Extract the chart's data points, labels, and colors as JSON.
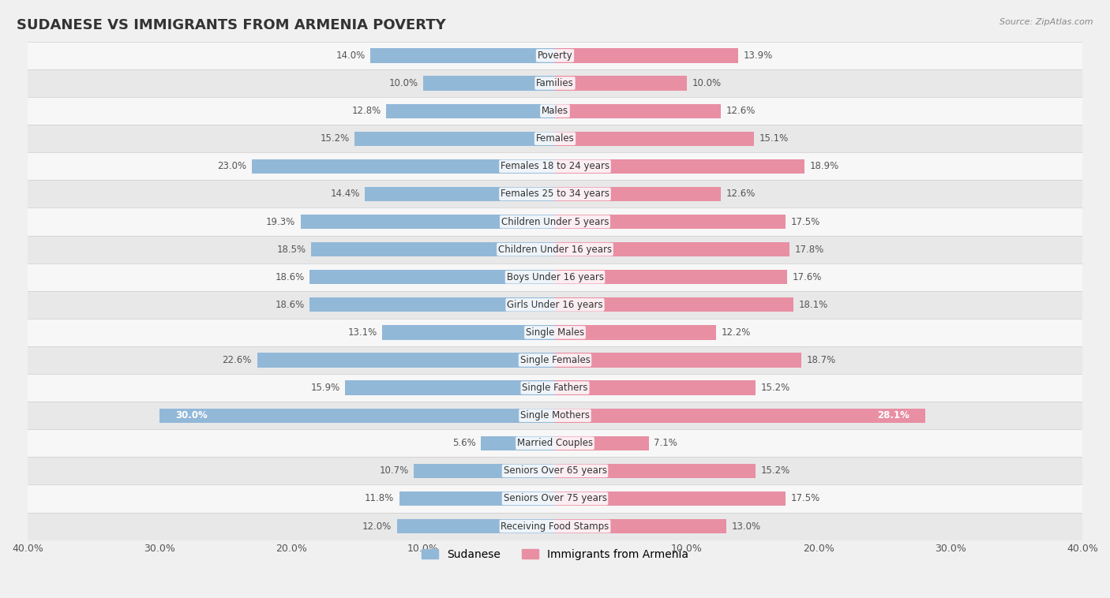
{
  "title": "SUDANESE VS IMMIGRANTS FROM ARMENIA POVERTY",
  "source": "Source: ZipAtlas.com",
  "categories": [
    "Poverty",
    "Families",
    "Males",
    "Females",
    "Females 18 to 24 years",
    "Females 25 to 34 years",
    "Children Under 5 years",
    "Children Under 16 years",
    "Boys Under 16 years",
    "Girls Under 16 years",
    "Single Males",
    "Single Females",
    "Single Fathers",
    "Single Mothers",
    "Married Couples",
    "Seniors Over 65 years",
    "Seniors Over 75 years",
    "Receiving Food Stamps"
  ],
  "sudanese": [
    14.0,
    10.0,
    12.8,
    15.2,
    23.0,
    14.4,
    19.3,
    18.5,
    18.6,
    18.6,
    13.1,
    22.6,
    15.9,
    30.0,
    5.6,
    10.7,
    11.8,
    12.0
  ],
  "armenia": [
    13.9,
    10.0,
    12.6,
    15.1,
    18.9,
    12.6,
    17.5,
    17.8,
    17.6,
    18.1,
    12.2,
    18.7,
    15.2,
    28.1,
    7.1,
    15.2,
    17.5,
    13.0
  ],
  "sudanese_color": "#92b8d8",
  "armenia_color": "#e88fa4",
  "label_color_default": "#555555",
  "single_mothers_label_color": "#ffffff",
  "background_color": "#f0f0f0",
  "row_color_light": "#f7f7f7",
  "row_color_dark": "#e8e8e8",
  "xlim": 40.0,
  "bar_height": 0.52,
  "title_fontsize": 13,
  "label_fontsize": 8.5,
  "category_fontsize": 8.5,
  "axis_label_fontsize": 9,
  "legend_fontsize": 10
}
